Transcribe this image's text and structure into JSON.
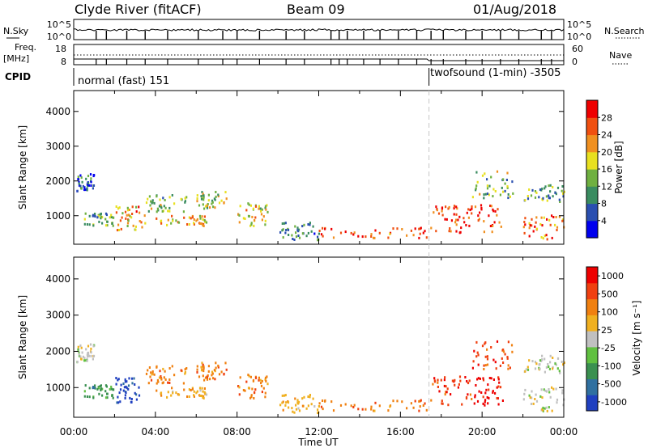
{
  "header": {
    "title": "Clyde River (fitACF)",
    "beam": "Beam 09",
    "date": "01/Aug/2018"
  },
  "strips": {
    "nsky_label": "N.Sky",
    "nsearch_label": "N.Search",
    "nsky_ticks": [
      "10^5",
      "10^0"
    ],
    "nsky_ticks_right": [
      "10^5",
      "10^0"
    ],
    "freq_label_1": "Freq.",
    "freq_label_2": "[MHz]",
    "freq_ticks": [
      "18",
      "8"
    ],
    "nave_label": "Nave",
    "nave_ticks": [
      "60",
      "0"
    ],
    "cpid_label": "CPID",
    "cpid_segments": [
      {
        "label": "normal (fast) 151",
        "start_hour": 0
      },
      {
        "label": "twofsound (1-min) -3505",
        "start_hour": 17.4
      }
    ]
  },
  "colors": {
    "power_scale": [
      "#0000ee",
      "#2a4fb0",
      "#3a8c60",
      "#6fb040",
      "#e8e020",
      "#f09020",
      "#f05010",
      "#ee0000"
    ],
    "velocity_scale": [
      "#2040c0",
      "#3070a0",
      "#3a9050",
      "#60c040",
      "#c0c0c0",
      "#f0b020",
      "#f08010",
      "#f04010",
      "#ee0000"
    ],
    "missing": "#ffffff"
  },
  "chart_data": [
    {
      "type": "heatmap",
      "name": "power",
      "xlabel": "",
      "ylabel": "Slant Range [km]",
      "xlim": [
        0,
        24
      ],
      "ylim": [
        180,
        4600
      ],
      "yticks": [
        1000,
        2000,
        3000,
        4000
      ],
      "colorbar": {
        "label": "Power [dB]",
        "range": [
          0,
          32
        ],
        "ticks": [
          "4",
          "8",
          "12",
          "16",
          "20",
          "24",
          "28"
        ]
      },
      "echo_regions": [
        {
          "t_start": 0.1,
          "t_end": 1.0,
          "r_low": 1700,
          "r_high": 2200,
          "value": 6
        },
        {
          "t_start": 0.5,
          "t_end": 2.0,
          "r_low": 700,
          "r_high": 1100,
          "value": 12
        },
        {
          "t_start": 2.0,
          "t_end": 3.5,
          "r_low": 550,
          "r_high": 1300,
          "value": 22
        },
        {
          "t_start": 3.5,
          "t_end": 5.5,
          "r_low": 1100,
          "r_high": 1600,
          "value": 14
        },
        {
          "t_start": 4.0,
          "t_end": 6.5,
          "r_low": 700,
          "r_high": 1000,
          "value": 20
        },
        {
          "t_start": 6.0,
          "t_end": 7.5,
          "r_low": 1200,
          "r_high": 1700,
          "value": 16
        },
        {
          "t_start": 8.0,
          "t_end": 9.5,
          "r_low": 700,
          "r_high": 1400,
          "value": 18
        },
        {
          "t_start": 10.0,
          "t_end": 12.0,
          "r_low": 300,
          "r_high": 800,
          "value": 10
        },
        {
          "t_start": 12.0,
          "t_end": 17.5,
          "r_low": 350,
          "r_high": 650,
          "value": 26
        },
        {
          "t_start": 17.5,
          "t_end": 21.0,
          "r_low": 500,
          "r_high": 1300,
          "value": 27
        },
        {
          "t_start": 19.5,
          "t_end": 21.5,
          "r_low": 1500,
          "r_high": 2300,
          "value": 14
        },
        {
          "t_start": 22.0,
          "t_end": 24.0,
          "r_low": 300,
          "r_high": 1000,
          "value": 24
        },
        {
          "t_start": 22.0,
          "t_end": 24.0,
          "r_low": 1400,
          "r_high": 1900,
          "value": 12
        }
      ]
    },
    {
      "type": "heatmap",
      "name": "velocity",
      "xlabel": "Time UT",
      "ylabel": "Slant Range [km]",
      "xlim": [
        0,
        24
      ],
      "ylim": [
        180,
        4600
      ],
      "yticks": [
        1000,
        2000,
        3000,
        4000
      ],
      "xticks": [
        "00:00",
        "04:00",
        "08:00",
        "12:00",
        "16:00",
        "20:00",
        "00:00"
      ],
      "colorbar": {
        "label": "Velocity [m s⁻¹]",
        "ticks": [
          "1000",
          "500",
          "100",
          "25",
          "-25",
          "-100",
          "-500",
          "-1000"
        ]
      },
      "echo_regions": [
        {
          "t_start": 0.1,
          "t_end": 1.0,
          "r_low": 1700,
          "r_high": 2200,
          "value": 4
        },
        {
          "t_start": 0.5,
          "t_end": 2.0,
          "r_low": 700,
          "r_high": 1100,
          "value": 2
        },
        {
          "t_start": 2.0,
          "t_end": 3.2,
          "r_low": 550,
          "r_high": 1300,
          "value": 0
        },
        {
          "t_start": 3.5,
          "t_end": 5.5,
          "r_low": 1100,
          "r_high": 1600,
          "value": 6
        },
        {
          "t_start": 4.0,
          "t_end": 6.5,
          "r_low": 700,
          "r_high": 1000,
          "value": 5
        },
        {
          "t_start": 6.0,
          "t_end": 7.5,
          "r_low": 1200,
          "r_high": 1700,
          "value": 6
        },
        {
          "t_start": 8.0,
          "t_end": 9.5,
          "r_low": 700,
          "r_high": 1400,
          "value": 6
        },
        {
          "t_start": 10.0,
          "t_end": 12.0,
          "r_low": 300,
          "r_high": 800,
          "value": 5
        },
        {
          "t_start": 12.0,
          "t_end": 17.5,
          "r_low": 350,
          "r_high": 650,
          "value": 6
        },
        {
          "t_start": 17.5,
          "t_end": 19.5,
          "r_low": 500,
          "r_high": 1300,
          "value": 7
        },
        {
          "t_start": 19.5,
          "t_end": 21.0,
          "r_low": 500,
          "r_high": 1300,
          "value": 8
        },
        {
          "t_start": 19.5,
          "t_end": 21.5,
          "r_low": 1500,
          "r_high": 2300,
          "value": 7
        },
        {
          "t_start": 22.0,
          "t_end": 24.0,
          "r_low": 300,
          "r_high": 1000,
          "value": 4
        },
        {
          "t_start": 22.0,
          "t_end": 24.0,
          "r_low": 1400,
          "r_high": 1900,
          "value": 4
        }
      ]
    }
  ]
}
